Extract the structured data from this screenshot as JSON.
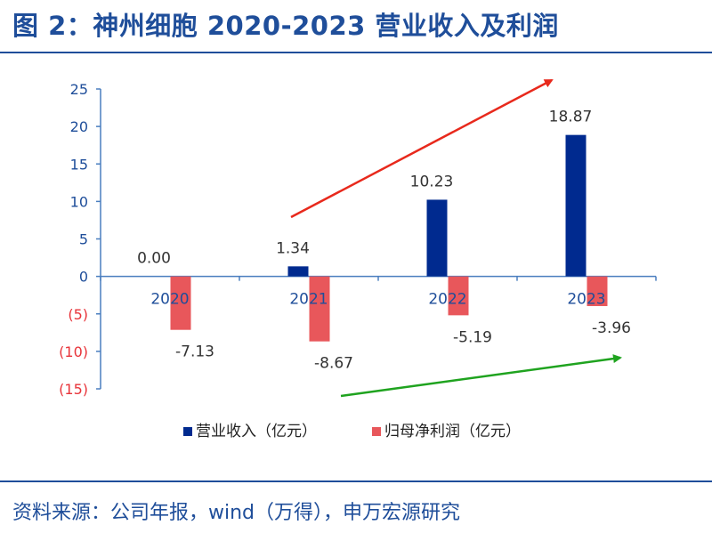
{
  "title": "图 2：神州细胞 2020-2023 营业收入及利润",
  "source": "资料来源：公司年报，wind（万得），申万宏源研究",
  "chart_data": {
    "type": "bar",
    "categories": [
      "2020",
      "2021",
      "2022",
      "2023"
    ],
    "series": [
      {
        "name": "营业收入（亿元）",
        "color": "#002a8f",
        "values": [
          0.0,
          1.34,
          10.23,
          18.87
        ],
        "labels": [
          "0.00",
          "1.34",
          "10.23",
          "18.87"
        ]
      },
      {
        "name": "归母净利润（亿元）",
        "color": "#e8575b",
        "values": [
          -7.13,
          -8.67,
          -5.19,
          -3.96
        ],
        "labels": [
          "-7.13",
          "-8.67",
          "-5.19",
          "-3.96"
        ]
      }
    ],
    "ylim": [
      -15,
      25
    ],
    "yticks": [
      25,
      20,
      15,
      10,
      5,
      0,
      -5,
      -10,
      -15
    ],
    "ytick_labels": [
      "25",
      "20",
      "15",
      "10",
      "5",
      "0",
      "(5)",
      "(10)",
      "(15)"
    ],
    "legend_position": "bottom",
    "annotations": [
      {
        "type": "arrow",
        "color": "#e8291c",
        "meaning": "revenue rising trend"
      },
      {
        "type": "arrow",
        "color": "#1fa31f",
        "meaning": "net loss narrowing trend"
      }
    ]
  }
}
